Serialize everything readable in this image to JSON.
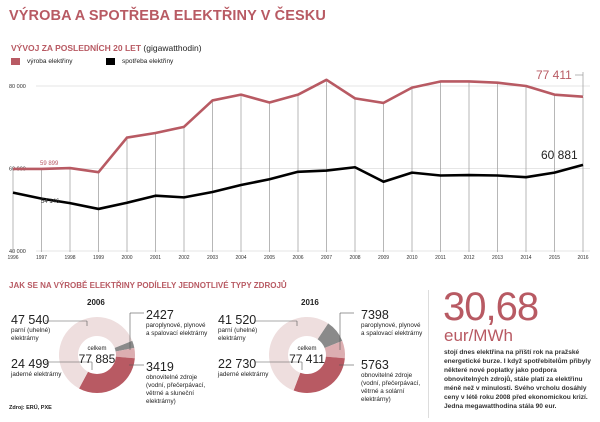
{
  "title": "VÝROBA A SPOTŘEBA ELEKTŘINY V ČESKU",
  "line_section": {
    "subtitle": "VÝVOJ ZA POSLEDNÍCH 20 LET",
    "unit": "(gigawatthodin)",
    "legend": [
      {
        "label": "výroba elektřiny",
        "color": "#b85a63"
      },
      {
        "label": "spotřeba elektřiny",
        "color": "#000000"
      }
    ]
  },
  "chart_data": [
    {
      "type": "line",
      "x": [
        1996,
        1997,
        1998,
        1999,
        2000,
        2001,
        2002,
        2003,
        2004,
        2005,
        2006,
        2007,
        2008,
        2009,
        2010,
        2011,
        2012,
        2013,
        2014,
        2015,
        2016
      ],
      "x_tick_labels": [
        "1996",
        "1997",
        "1998",
        "1999",
        "2000",
        "2001",
        "2002",
        "2003",
        "2004",
        "2005",
        "2006",
        "2007",
        "2008",
        "2009",
        "2010",
        "2011",
        "2012",
        "2013",
        "2014",
        "2015",
        "2016"
      ],
      "y_tick_labels": [
        "80 000",
        "60 000",
        "40 000"
      ],
      "ylim": [
        40000,
        81500
      ],
      "grid": "horizontal",
      "legend_position": "top-left",
      "series": [
        {
          "name": "výroba elektřiny",
          "color": "#b85a63",
          "values": [
            59899,
            59900,
            60100,
            59100,
            67500,
            68600,
            70100,
            76500,
            77900,
            76000,
            77900,
            81500,
            77000,
            75900,
            79600,
            81100,
            81100,
            80800,
            80000,
            77900,
            77411
          ],
          "annotations": [
            {
              "x": 1996,
              "text": "59 899"
            },
            {
              "x": 2016,
              "text": "77 411"
            }
          ]
        },
        {
          "name": "spotřeba elektřiny",
          "color": "#000000",
          "values": [
            54146,
            52700,
            51600,
            50200,
            51700,
            53400,
            53000,
            54300,
            56000,
            57400,
            59200,
            59500,
            60300,
            56800,
            59000,
            58300,
            58400,
            58300,
            57900,
            59000,
            60881
          ],
          "annotations": [
            {
              "x": 1996,
              "text": "54 146"
            },
            {
              "x": 2016,
              "text": "60 881"
            }
          ]
        }
      ]
    },
    {
      "type": "pie",
      "title": "2006",
      "center_label": "celkem",
      "total": "77 885",
      "slices": [
        {
          "value": 2427,
          "label": "2427",
          "desc": "paroplynové, plynové a spalovací elektrárny",
          "color": "#8a8a8a"
        },
        {
          "value": 3419,
          "label": "3419",
          "desc": "obnovitelné zdroje (vodní, přečerpávací, větrné a sluneční elektrárny)",
          "color": "#dcaeb1"
        },
        {
          "value": 24499,
          "label": "24 499",
          "desc": "jaderné elektrárny",
          "color": "#b85a63"
        },
        {
          "value": 47540,
          "label": "47 540",
          "desc": "parní (uhelné) elektrárny",
          "color": "#eedede"
        }
      ]
    },
    {
      "type": "pie",
      "title": "2016",
      "center_label": "celkem",
      "total": "77 411",
      "slices": [
        {
          "value": 7398,
          "label": "7398",
          "desc": "paroplynové, plynové a spalovací elektrárny",
          "color": "#8a8a8a"
        },
        {
          "value": 5763,
          "label": "5763",
          "desc": "obnovitelné zdroje (vodní, přečerpávací, větrné a solární elektrárny)",
          "color": "#dcaeb1"
        },
        {
          "value": 22730,
          "label": "22 730",
          "desc": "jaderné elektrárny",
          "color": "#b85a63"
        },
        {
          "value": 41520,
          "label": "41 520",
          "desc": "parní (uhelné) elektrárny",
          "color": "#eedede"
        }
      ]
    }
  ],
  "pie_section": {
    "title": "JAK SE NA VÝROBĚ ELEKTŘINY PODÍLELY JEDNOTLIVÉ TYPY ZDROJŮ"
  },
  "price": {
    "value": "30,68",
    "unit": "eur/MWh",
    "text": "stojí dnes elektřina na příští rok na pražské energetické burze. I když spotřebitelům přibyly některé nové poplatky jako podpora obnovitelných zdrojů, stále platí za elektřinu méně než v minulosti. Svého vrcholu dosáhly ceny v létě roku 2008 před ekonomickou krizí. Jedna megawatthodina stála 90 eur."
  },
  "source": "Zdroj: ERÚ, PXE"
}
